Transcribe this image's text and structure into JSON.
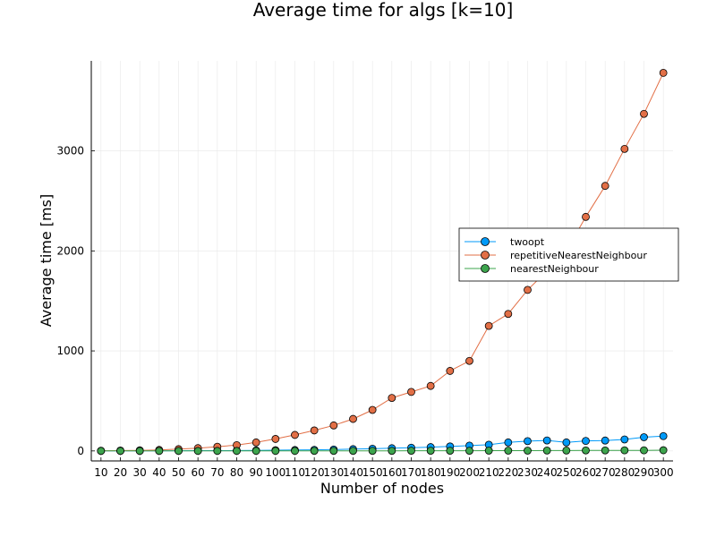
{
  "chart_data": {
    "type": "line",
    "title": "Average time for algs [k=10]",
    "xlabel": "Number of nodes",
    "ylabel": "Average time [ms]",
    "x": [
      10,
      20,
      30,
      40,
      50,
      60,
      70,
      80,
      90,
      100,
      110,
      120,
      130,
      140,
      150,
      160,
      170,
      180,
      190,
      200,
      210,
      220,
      230,
      240,
      250,
      260,
      270,
      280,
      290,
      300
    ],
    "xlim": [
      5,
      305
    ],
    "ylim": [
      -100,
      3900
    ],
    "yticks": [
      0,
      1000,
      2000,
      3000
    ],
    "grid": true,
    "legend_position": "right",
    "series": [
      {
        "name": "twoopt",
        "color": "#009af9",
        "values": [
          0,
          0,
          0,
          1,
          2,
          3,
          3,
          4,
          5,
          7,
          9,
          11,
          14,
          18,
          22,
          27,
          32,
          38,
          45,
          53,
          62,
          85,
          98,
          105,
          85,
          100,
          104,
          115,
          137,
          148
        ]
      },
      {
        "name": "repetitiveNearestNeighbour",
        "color": "#e26f46",
        "values": [
          2,
          4,
          6,
          10,
          18,
          28,
          42,
          58,
          85,
          120,
          160,
          205,
          255,
          320,
          410,
          530,
          590,
          650,
          800,
          900,
          1250,
          1370,
          1610,
          1800,
          2000,
          2340,
          2650,
          3020,
          3370,
          3780
        ]
      },
      {
        "name": "nearestNeighbour",
        "color": "#3da44d",
        "values": [
          0,
          0,
          0,
          0,
          0,
          0,
          0,
          0,
          0,
          0,
          0,
          1,
          1,
          1,
          1,
          1,
          2,
          2,
          2,
          2,
          3,
          3,
          3,
          4,
          4,
          5,
          5,
          6,
          6,
          7
        ]
      }
    ]
  }
}
